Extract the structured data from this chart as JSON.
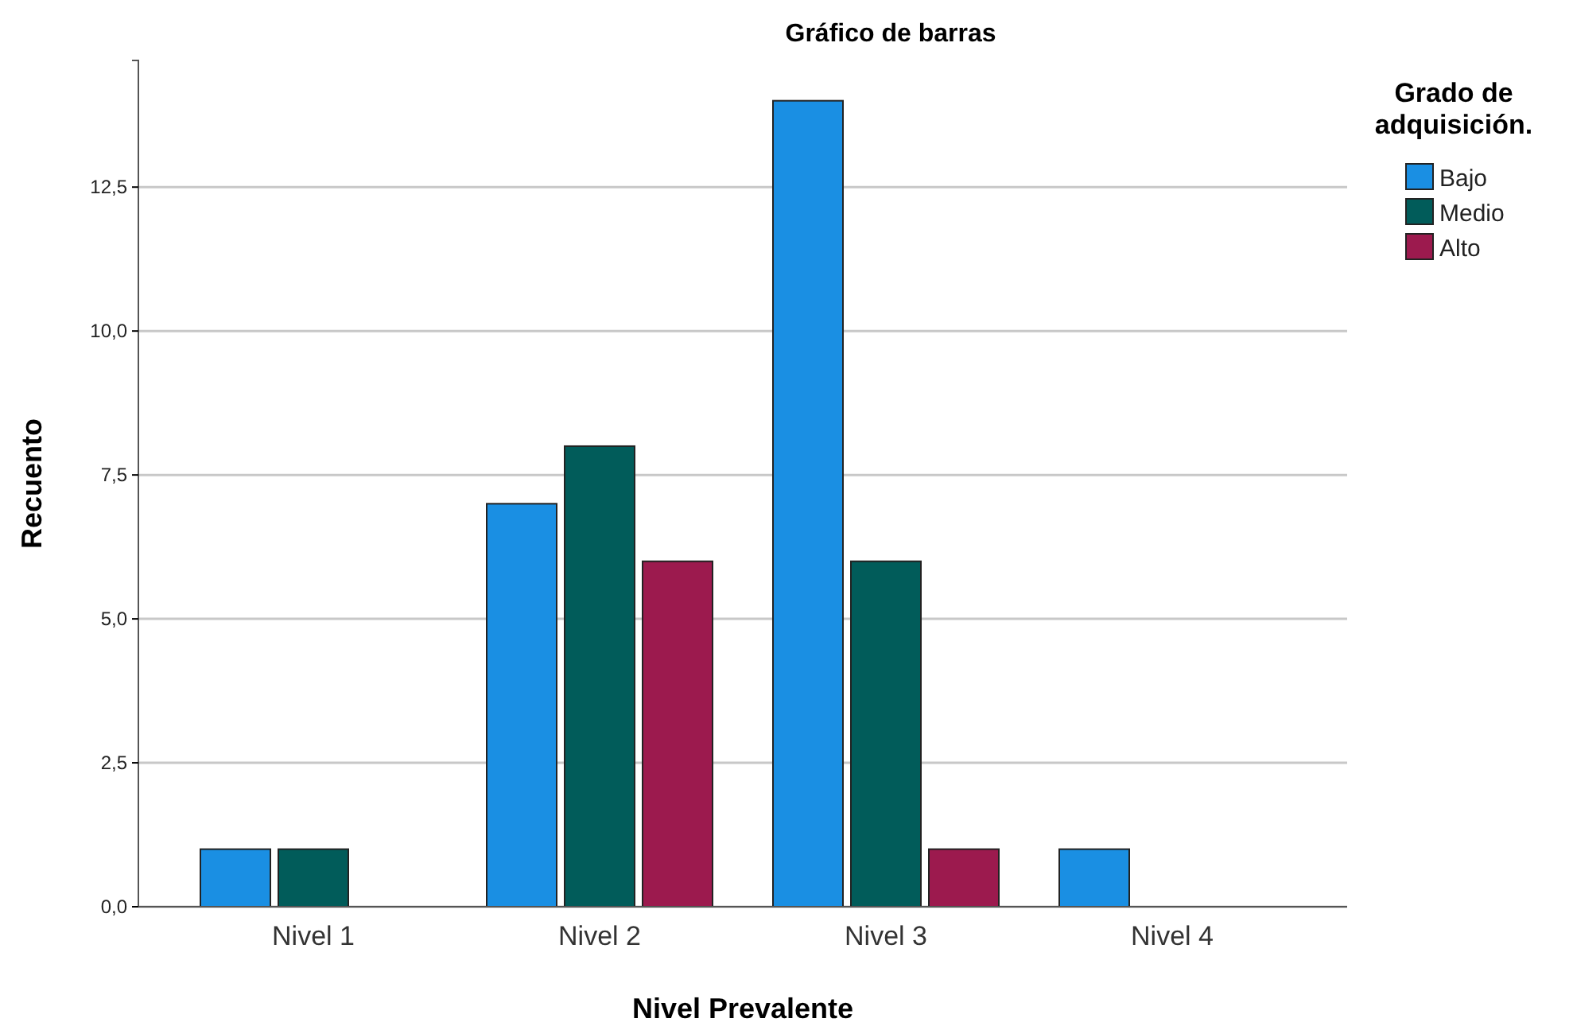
{
  "chart_data": {
    "type": "bar",
    "title": "Gráfico de barras",
    "xlabel": "Nivel Prevalente",
    "ylabel": "Recuento",
    "legend_title": "Grado de adquisición.",
    "categories": [
      "Nivel 1",
      "Nivel 2",
      "Nivel 3",
      "Nivel 4"
    ],
    "series": [
      {
        "name": "Bajo",
        "color": "#1a8fe3",
        "values": [
          1,
          7,
          14,
          1
        ]
      },
      {
        "name": "Medio",
        "color": "#015c5a",
        "values": [
          1,
          8,
          6,
          null
        ]
      },
      {
        "name": "Alto",
        "color": "#9c1a4e",
        "values": [
          null,
          6,
          1,
          null
        ]
      }
    ],
    "ylim": [
      0,
      14.7
    ],
    "yticks": [
      {
        "value": 0,
        "label": "0,0"
      },
      {
        "value": 2.5,
        "label": "2,5"
      },
      {
        "value": 5,
        "label": "5,0"
      },
      {
        "value": 7.5,
        "label": "7,5"
      },
      {
        "value": 10,
        "label": "10,0"
      },
      {
        "value": 12.5,
        "label": "12,5"
      }
    ],
    "grid": "y",
    "legend": "right"
  }
}
